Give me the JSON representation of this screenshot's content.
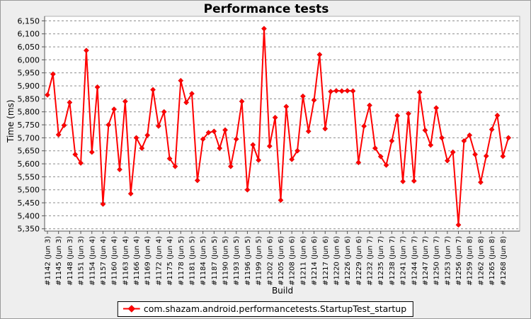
{
  "header": {
    "title": "Performance tests"
  },
  "legend": {
    "label": "com.shazam.android.performancetests.StartupTest_startup"
  },
  "chart_data": {
    "type": "line",
    "title": "Performance tests",
    "xlabel": "Build",
    "ylabel": "Time (ms)",
    "ylim": [
      5350,
      6150
    ],
    "y_tick_step": 50,
    "y_tick_labels": [
      "5,350",
      "5,400",
      "5,450",
      "5,500",
      "5,550",
      "5,600",
      "5,650",
      "5,700",
      "5,750",
      "5,800",
      "5,850",
      "5,900",
      "5,950",
      "6,000",
      "6,050",
      "6,100",
      "6,150"
    ],
    "grid": "horizontal-dashed",
    "legend_position": "bottom",
    "points_per_label": 2,
    "x_tick_labels": [
      "#1142 (Jun 3)",
      "#1145 (Jun 3)",
      "#1148 (Jun 3)",
      "#1151 (Jun 3)",
      "#1154 (Jun 4)",
      "#1157 (Jun 4)",
      "#1160 (Jun 4)",
      "#1163 (Jun 4)",
      "#1166 (Jun 4)",
      "#1169 (Jun 4)",
      "#1172 (Jun 4)",
      "#1175 (Jun 4)",
      "#1178 (Jun 5)",
      "#1181 (Jun 5)",
      "#1184 (Jun 5)",
      "#1187 (Jun 5)",
      "#1190 (Jun 5)",
      "#1193 (Jun 5)",
      "#1196 (Jun 5)",
      "#1199 (Jun 5)",
      "#1202 (Jun 6)",
      "#1205 (Jun 6)",
      "#1208 (Jun 6)",
      "#1211 (Jun 6)",
      "#1214 (Jun 6)",
      "#1217 (Jun 6)",
      "#1220 (Jun 6)",
      "#1226 (Jun 6)",
      "#1229 (Jun 6)",
      "#1232 (Jun 7)",
      "#1235 (Jun 7)",
      "#1238 (Jun 7)",
      "#1241 (Jun 7)",
      "#1244 (Jun 7)",
      "#1247 (Jun 7)",
      "#1250 (Jun 7)",
      "#1253 (Jun 7)",
      "#1256 (Jun 7)",
      "#1259 (Jun 8)",
      "#1262 (Jun 8)",
      "#1265 (Jun 8)",
      "#1268 (Jun 8)"
    ],
    "series": [
      {
        "name": "com.shazam.android.performancetests.StartupTest_startup",
        "color": "#ff0000",
        "marker": "diamond",
        "values": [
          5865,
          5945,
          5712,
          5748,
          5836,
          5636,
          5603,
          6036,
          5645,
          5895,
          5445,
          5750,
          5810,
          5578,
          5840,
          5485,
          5700,
          5660,
          5710,
          5885,
          5745,
          5800,
          5620,
          5590,
          5920,
          5836,
          5870,
          5536,
          5695,
          5720,
          5725,
          5660,
          5730,
          5590,
          5695,
          5840,
          5500,
          5673,
          5614,
          6120,
          5668,
          5778,
          5460,
          5820,
          5617,
          5650,
          5860,
          5725,
          5845,
          6020,
          5735,
          5878,
          5881,
          5880,
          5881,
          5880,
          5605,
          5745,
          5825,
          5660,
          5628,
          5595,
          5688,
          5785,
          5532,
          5793,
          5534,
          5875,
          5729,
          5672,
          5815,
          5700,
          5612,
          5645,
          5365,
          5688,
          5710,
          5636,
          5529,
          5630,
          5732,
          5786,
          5629,
          5700
        ]
      }
    ],
    "colors": {
      "series": "#ff0000",
      "plot_background": "#ffffff",
      "page_background": "#eeeeee",
      "gridline": "#8c8c8c",
      "axis": "#555555"
    }
  }
}
